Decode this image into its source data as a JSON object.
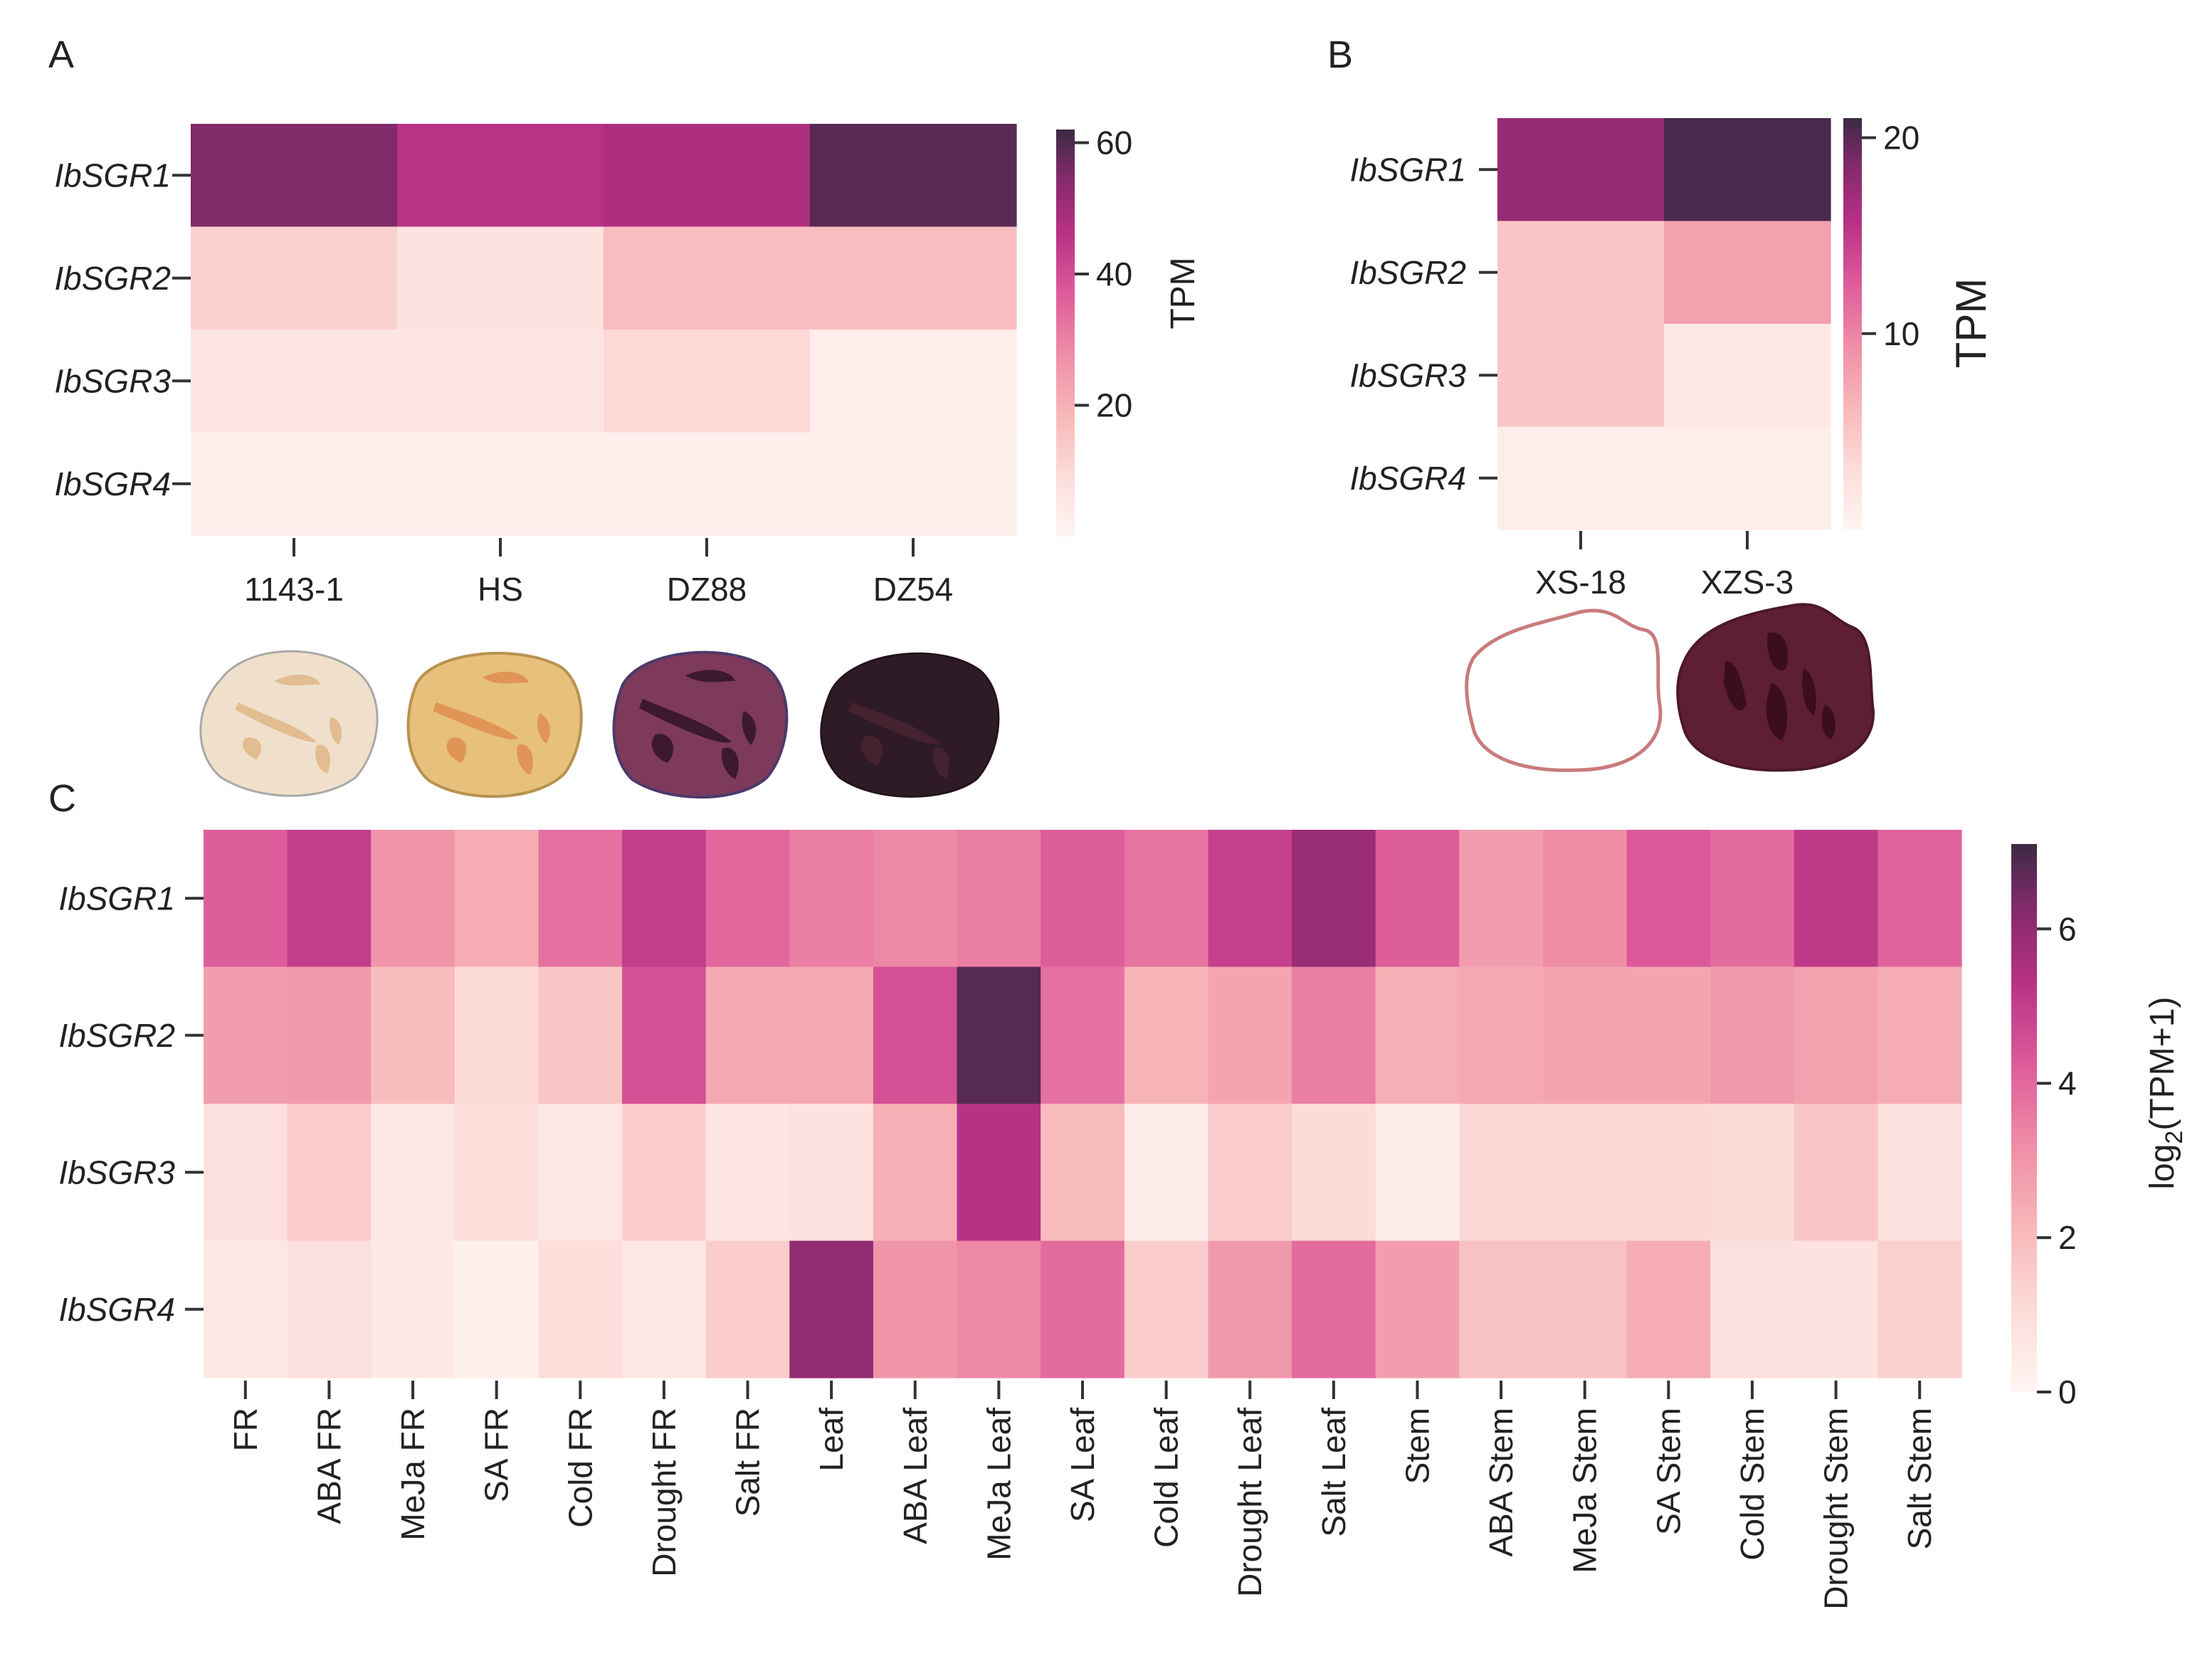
{
  "chart_data": [
    {
      "panel": "A",
      "type": "heatmap",
      "rows": [
        "IbSGR1",
        "IbSGR2",
        "IbSGR3",
        "IbSGR4"
      ],
      "columns": [
        "1143-1",
        "HS",
        "DZ88",
        "DZ54"
      ],
      "values": [
        [
          55,
          46,
          48,
          59
        ],
        [
          12,
          7,
          17,
          17
        ],
        [
          6,
          6,
          10,
          3
        ],
        [
          2,
          2,
          2,
          2
        ]
      ],
      "colorbar": {
        "label": "TPM",
        "min": 0,
        "max": 62,
        "ticks": [
          20,
          40,
          60
        ]
      },
      "tuber_icons": [
        {
          "name": "1143-1",
          "fill": "#f0e0cb",
          "stroke": "#a8a8a8",
          "spot": "#e2bd91"
        },
        {
          "name": "HS",
          "fill": "#e7c07c",
          "stroke": "#b8924f",
          "spot": "#e09456"
        },
        {
          "name": "DZ88",
          "fill": "#7d3a5b",
          "stroke": "#4c3a6a",
          "spot": "#3c1930"
        },
        {
          "name": "DZ54",
          "fill": "#2f1b26",
          "stroke": "#24131c",
          "spot": "#45222f"
        }
      ]
    },
    {
      "panel": "B",
      "type": "heatmap",
      "rows": [
        "IbSGR1",
        "IbSGR2",
        "IbSGR3",
        "IbSGR4"
      ],
      "columns": [
        "XS-18",
        "XZS-3"
      ],
      "values": [
        [
          17.5,
          20.5
        ],
        [
          5,
          8
        ],
        [
          5,
          1.5
        ],
        [
          1,
          1
        ]
      ],
      "colorbar": {
        "label": "TPM",
        "min": 0,
        "max": 21,
        "ticks": [
          10,
          20
        ]
      },
      "tuber_icons": [
        {
          "name": "XS-18",
          "fill": "#ffffff",
          "stroke": "#c97b7b",
          "spot": ""
        },
        {
          "name": "XZS-3",
          "fill": "#5e1f33",
          "stroke": "#4d1829",
          "spot": "#3a0e1e"
        }
      ]
    },
    {
      "panel": "C",
      "type": "heatmap",
      "rows": [
        "IbSGR1",
        "IbSGR2",
        "IbSGR3",
        "IbSGR4"
      ],
      "columns": [
        "FR",
        "ABA FR",
        "MeJa FR",
        "SA FR",
        "Cold FR",
        "Drought FR",
        "Salt FR",
        "Leaf",
        "ABA Leaf",
        "MeJa Leaf",
        "SA Leaf",
        "Cold Leaf",
        "Drought Leaf",
        "Salt Leaf",
        "Stem",
        "ABA Stem",
        "MeJa Stem",
        "SA Stem",
        "Cold Stem",
        "Drought Stem",
        "Salt Stem"
      ],
      "values": [
        [
          4.2,
          5.0,
          3.0,
          2.4,
          3.8,
          5.0,
          4.0,
          3.5,
          3.3,
          3.5,
          4.2,
          3.7,
          4.9,
          5.9,
          4.2,
          2.8,
          3.2,
          4.3,
          3.9,
          5.1,
          4.1
        ],
        [
          2.8,
          2.9,
          2.0,
          1.1,
          1.7,
          4.5,
          2.5,
          2.5,
          4.5,
          6.8,
          3.8,
          2.2,
          2.6,
          3.5,
          2.3,
          2.5,
          2.6,
          2.6,
          2.9,
          2.7,
          2.4
        ],
        [
          0.9,
          1.5,
          0.6,
          1.0,
          0.6,
          1.5,
          0.7,
          0.8,
          2.3,
          5.3,
          2.0,
          0.4,
          1.5,
          1.1,
          0.4,
          1.2,
          1.2,
          1.2,
          1.1,
          1.7,
          0.9
        ],
        [
          0.6,
          0.9,
          0.5,
          0.2,
          1.0,
          0.6,
          1.5,
          6.0,
          3.0,
          3.3,
          3.9,
          1.5,
          2.9,
          3.9,
          2.8,
          1.8,
          1.8,
          2.4,
          0.9,
          0.8,
          1.4
        ]
      ],
      "colorbar": {
        "label_main": "log",
        "label_sub": "2",
        "label_tail": "(TPM+1)",
        "min": 0,
        "max": 7.1,
        "ticks": [
          0,
          2,
          4,
          6
        ]
      }
    }
  ],
  "panel_labels": {
    "a": "A",
    "b": "B",
    "c": "C"
  }
}
